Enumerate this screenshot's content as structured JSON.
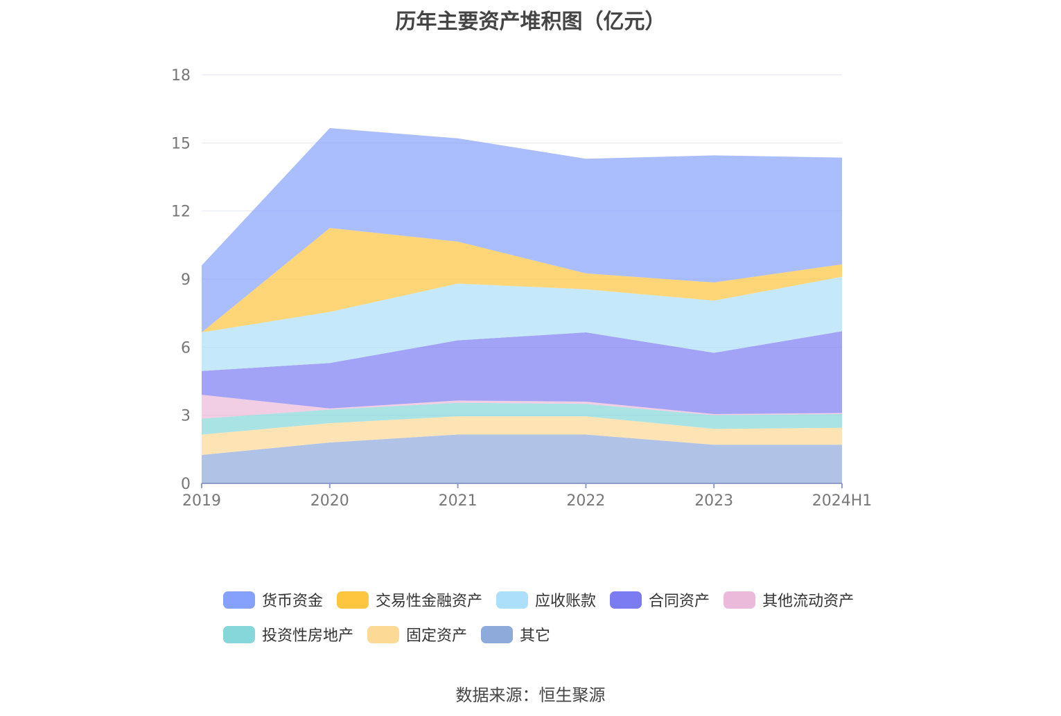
{
  "chart_data": {
    "type": "area",
    "stacked": true,
    "title": "历年主要资产堆积图（亿元）",
    "categories": [
      "2019",
      "2020",
      "2021",
      "2022",
      "2023",
      "2024H1"
    ],
    "ylim": [
      0,
      18
    ],
    "yticks": [
      0,
      3,
      6,
      9,
      12,
      15,
      18
    ],
    "grid": true,
    "legend_position": "bottom",
    "series": [
      {
        "name": "其它",
        "color": "#8eaadb",
        "values": [
          1.25,
          1.8,
          2.15,
          2.15,
          1.7,
          1.7
        ]
      },
      {
        "name": "固定资产",
        "color": "#fdd996",
        "values": [
          0.9,
          0.85,
          0.8,
          0.8,
          0.7,
          0.75
        ]
      },
      {
        "name": "投资性房地产",
        "color": "#86d7d9",
        "values": [
          0.7,
          0.6,
          0.6,
          0.55,
          0.6,
          0.6
        ]
      },
      {
        "name": "其他流动资产",
        "color": "#ebb9d9",
        "values": [
          1.05,
          0.05,
          0.1,
          0.1,
          0.05,
          0.05
        ]
      },
      {
        "name": "合同资产",
        "color": "#7b7cf2",
        "values": [
          1.05,
          2.0,
          2.65,
          3.05,
          2.7,
          3.6
        ]
      },
      {
        "name": "应收账款",
        "color": "#ace0fa",
        "values": [
          1.7,
          2.25,
          2.5,
          1.9,
          2.3,
          2.4
        ]
      },
      {
        "name": "交易性金融资产",
        "color": "#fec53f",
        "values": [
          0.0,
          3.7,
          1.85,
          0.7,
          0.8,
          0.55
        ]
      },
      {
        "name": "货币资金",
        "color": "#86a1fc",
        "values": [
          2.95,
          4.4,
          4.55,
          5.05,
          5.6,
          4.7
        ]
      }
    ],
    "legend_order": [
      "货币资金",
      "交易性金融资产",
      "应收账款",
      "合同资产",
      "其他流动资产",
      "投资性房地产",
      "固定资产",
      "其它"
    ]
  },
  "source_note": "数据来源：恒生聚源"
}
